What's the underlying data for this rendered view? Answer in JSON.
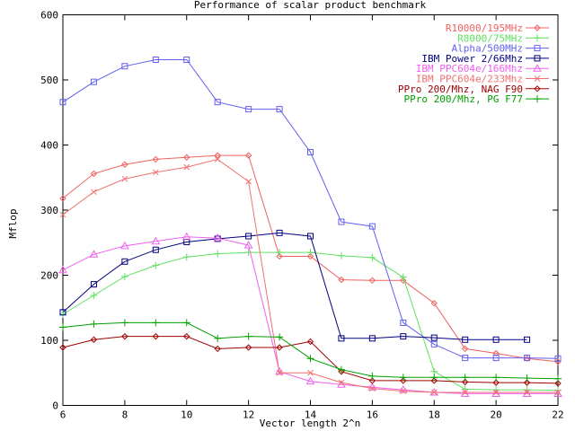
{
  "chart_data": {
    "type": "line",
    "title": "Performance of scalar product benchmark",
    "xlabel": "Vector length 2^n",
    "ylabel": "Mflop",
    "xlim": [
      6,
      22
    ],
    "ylim": [
      0,
      600
    ],
    "xticks": [
      6,
      8,
      10,
      12,
      14,
      16,
      18,
      20,
      22
    ],
    "yticks": [
      0,
      100,
      200,
      300,
      400,
      500,
      600
    ],
    "grid": false,
    "legend_position": "top-right",
    "series": [
      {
        "name": "R10000/195MHz",
        "color": "#f06060",
        "marker": "diamond",
        "x": [
          6,
          7,
          8,
          9,
          10,
          11,
          12,
          13,
          14,
          15,
          16,
          17,
          18,
          19,
          20,
          21,
          22
        ],
        "y": [
          318,
          356,
          370,
          378,
          381,
          384,
          384,
          229,
          229,
          193,
          192,
          192,
          157,
          87,
          80,
          72,
          67
        ]
      },
      {
        "name": "R8000/75MHz",
        "color": "#60e060",
        "marker": "plus",
        "x": [
          6,
          7,
          8,
          9,
          10,
          11,
          12,
          13,
          14,
          15,
          16,
          17,
          18,
          19,
          20,
          21,
          22
        ],
        "y": [
          140,
          169,
          198,
          215,
          228,
          233,
          235,
          235,
          235,
          230,
          227,
          197,
          52,
          25,
          24,
          24,
          23
        ]
      },
      {
        "name": "Alpha/500MHz",
        "color": "#6060f0",
        "marker": "square",
        "x": [
          6,
          7,
          8,
          9,
          10,
          11,
          12,
          13,
          14,
          15,
          16,
          17,
          18,
          19,
          20,
          21,
          22
        ],
        "y": [
          466,
          497,
          521,
          531,
          531,
          466,
          455,
          455,
          389,
          282,
          275,
          127,
          94,
          73,
          73,
          73,
          72
        ]
      },
      {
        "name": "IBM Power 2/66Mhz",
        "color": "#000080",
        "marker": "square",
        "x": [
          6,
          7,
          8,
          9,
          10,
          11,
          12,
          13,
          14,
          15,
          16,
          17,
          18,
          19,
          20,
          21
        ],
        "y": [
          143,
          186,
          221,
          239,
          251,
          256,
          260,
          265,
          260,
          103,
          103,
          106,
          104,
          101,
          101,
          101
        ]
      },
      {
        "name": "IBM PPC604e/166Mhz",
        "color": "#f060f0",
        "marker": "triangle",
        "x": [
          6,
          7,
          8,
          9,
          10,
          11,
          12,
          13,
          14,
          15,
          16,
          17,
          18,
          19,
          20,
          21,
          22
        ],
        "y": [
          208,
          232,
          245,
          252,
          259,
          257,
          246,
          52,
          37,
          32,
          28,
          24,
          20,
          18,
          18,
          18,
          18
        ]
      },
      {
        "name": "IBM PPC604e/233Mhz",
        "color": "#f07070",
        "marker": "cross",
        "x": [
          6,
          7,
          8,
          9,
          10,
          11,
          12,
          13,
          14,
          15,
          16,
          17,
          18,
          19,
          20,
          21,
          22
        ],
        "y": [
          293,
          328,
          348,
          358,
          366,
          378,
          344,
          50,
          50,
          35,
          26,
          22,
          20,
          20,
          20,
          20,
          20
        ]
      },
      {
        "name": "PPro 200/Mhz, NAG F90",
        "color": "#a00000",
        "marker": "diamond",
        "x": [
          6,
          7,
          8,
          9,
          10,
          11,
          12,
          13,
          14,
          15,
          16,
          17,
          18,
          19,
          20,
          21,
          22
        ],
        "y": [
          89,
          101,
          106,
          106,
          106,
          87,
          89,
          89,
          98,
          52,
          38,
          38,
          38,
          36,
          35,
          35,
          34
        ]
      },
      {
        "name": "PPro 200/Mhz, PG F77",
        "color": "#00a000",
        "marker": "plus",
        "x": [
          6,
          7,
          8,
          9,
          10,
          11,
          12,
          13,
          14,
          15,
          16,
          17,
          18,
          19,
          20,
          21,
          22
        ],
        "y": [
          120,
          125,
          127,
          127,
          127,
          103,
          106,
          105,
          72,
          55,
          45,
          43,
          43,
          43,
          43,
          42,
          41
        ]
      }
    ]
  }
}
